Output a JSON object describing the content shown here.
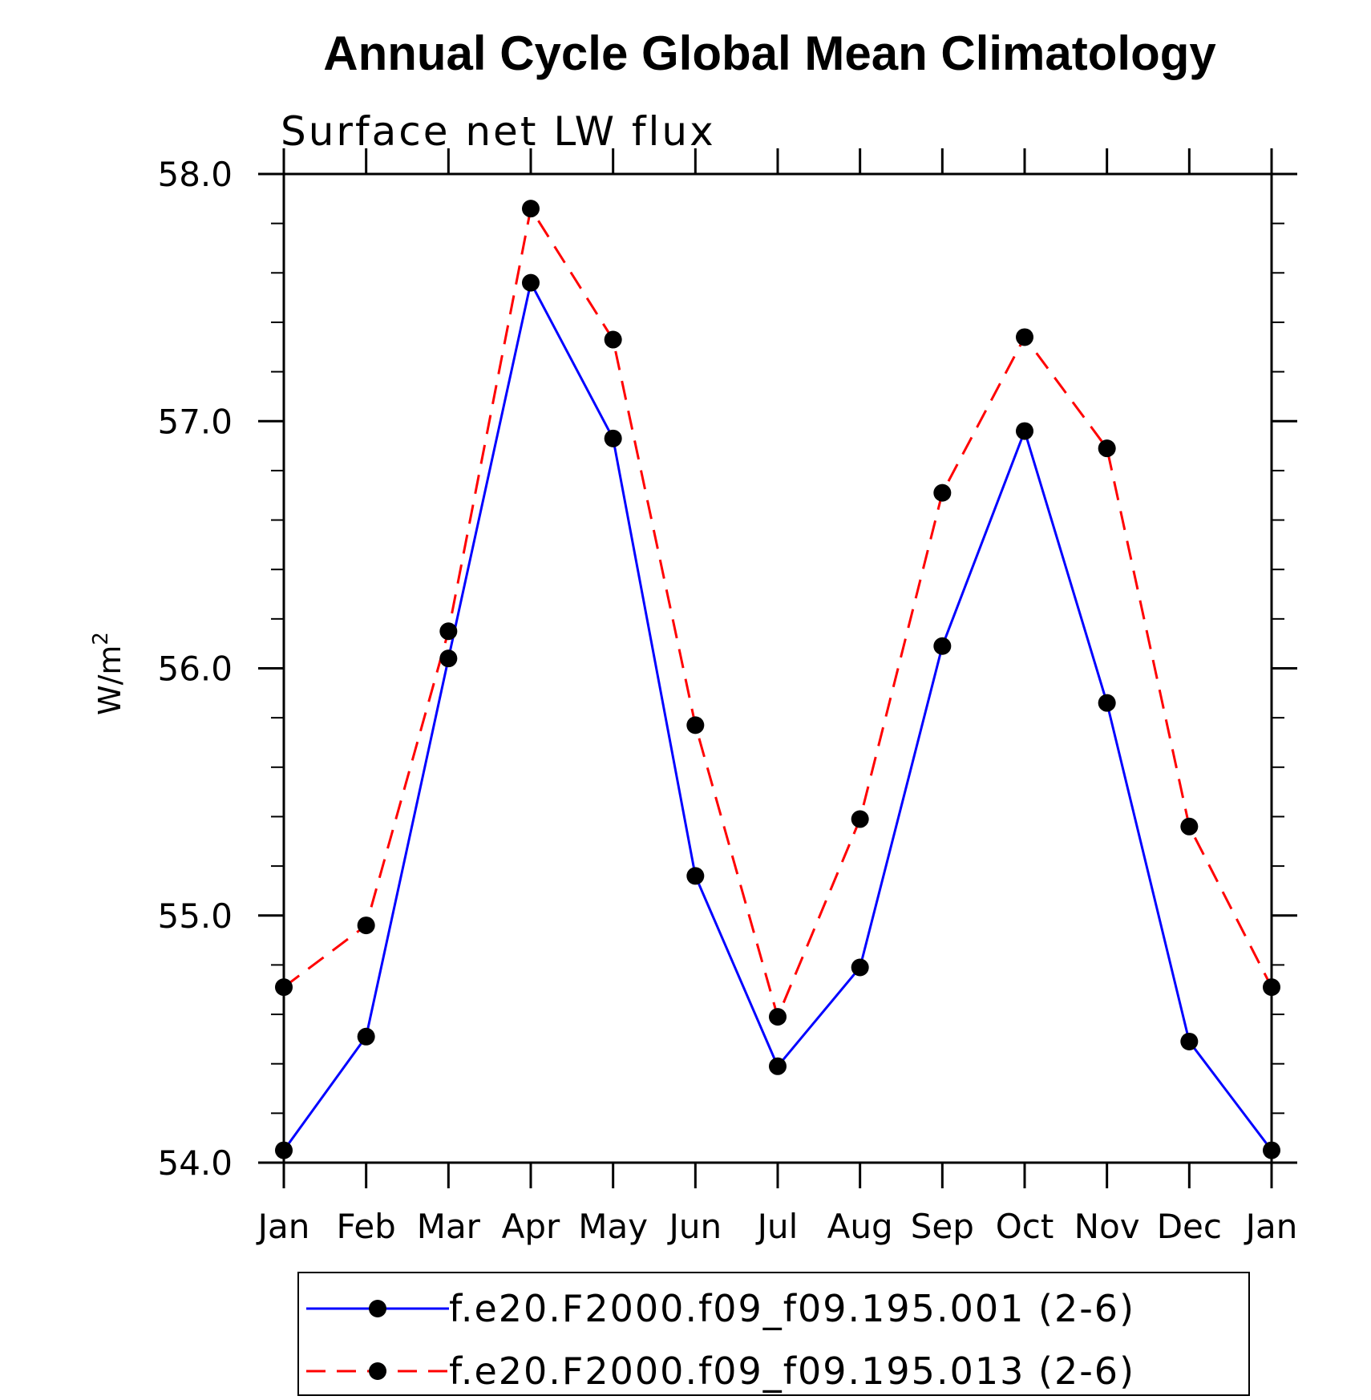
{
  "chart_data": {
    "type": "line",
    "title": "Annual Cycle Global Mean Climatology",
    "subtitle": "Surface net LW flux",
    "ylabel_base": "W/m",
    "ylabel_sup": "2",
    "xlabel": "",
    "categories": [
      "Jan",
      "Feb",
      "Mar",
      "Apr",
      "May",
      "Jun",
      "Jul",
      "Aug",
      "Sep",
      "Oct",
      "Nov",
      "Dec",
      "Jan"
    ],
    "ylim": [
      54.0,
      58.0
    ],
    "yticks": [
      "54.0",
      "55.0",
      "56.0",
      "57.0",
      "58.0"
    ],
    "series": [
      {
        "name": "f.e20.F2000.f09_f09.195.001 (2-6)",
        "color": "#0000ff",
        "line_style": "solid",
        "values": [
          54.05,
          54.51,
          56.04,
          57.56,
          56.93,
          55.16,
          54.39,
          54.79,
          56.09,
          56.96,
          55.86,
          54.49,
          54.05
        ]
      },
      {
        "name": "f.e20.F2000.f09_f09.195.013 (2-6)",
        "color": "#ff0000",
        "line_style": "dashed",
        "values": [
          54.71,
          54.96,
          56.15,
          57.86,
          57.33,
          55.77,
          54.59,
          55.39,
          56.71,
          57.34,
          56.89,
          55.36,
          54.71
        ]
      }
    ],
    "marker": "filled-circle",
    "marker_color": "#000000",
    "legend_position": "bottom",
    "grid": false
  }
}
